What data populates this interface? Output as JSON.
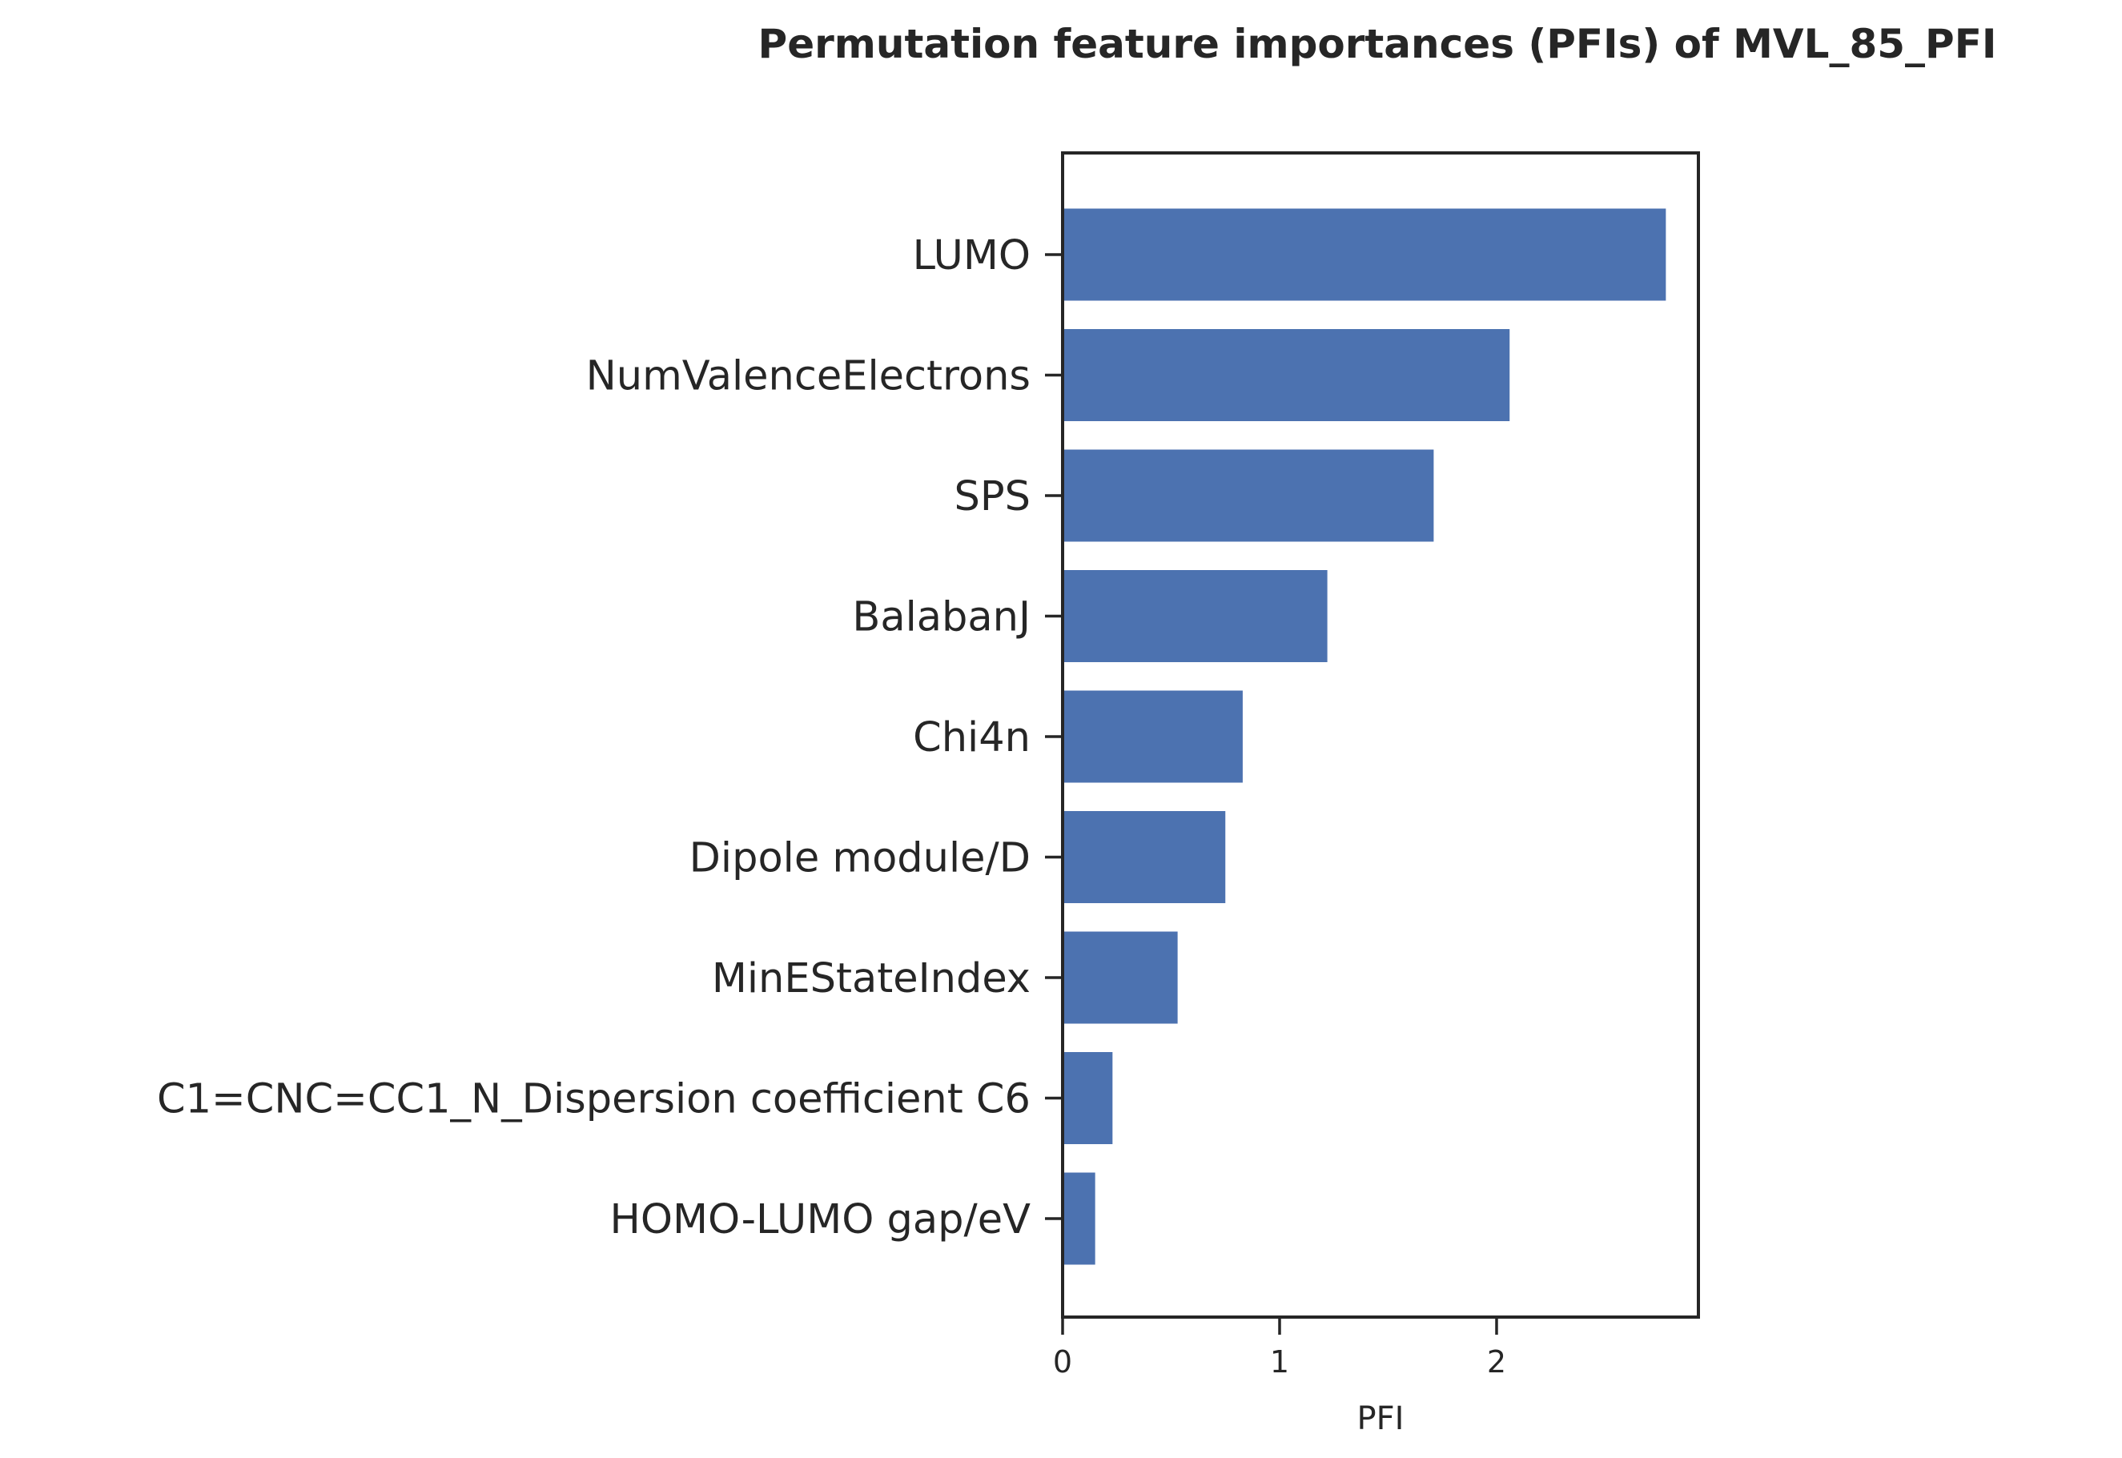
{
  "chart_data": {
    "type": "bar",
    "orientation": "horizontal",
    "title": "Permutation feature importances (PFIs) of MVL_85_PFI",
    "xlabel": "PFI",
    "ylabel": "",
    "categories": [
      "LUMO",
      "NumValenceElectrons",
      "SPS",
      "BalabanJ",
      "Chi4n",
      "Dipole module/D",
      "MinEStateIndex",
      "C1=CNC=CC1_N_Dispersion coefficient C6",
      "HOMO-LUMO gap/eV"
    ],
    "values": [
      2.78,
      2.06,
      1.71,
      1.22,
      0.83,
      0.75,
      0.53,
      0.23,
      0.15
    ],
    "xlim": [
      0,
      2.93
    ],
    "xticks": [
      0,
      1,
      2
    ],
    "xtick_labels": [
      "0",
      "1",
      "2"
    ],
    "bar_color": "#4c72b0",
    "grid": false,
    "legend": "none"
  }
}
